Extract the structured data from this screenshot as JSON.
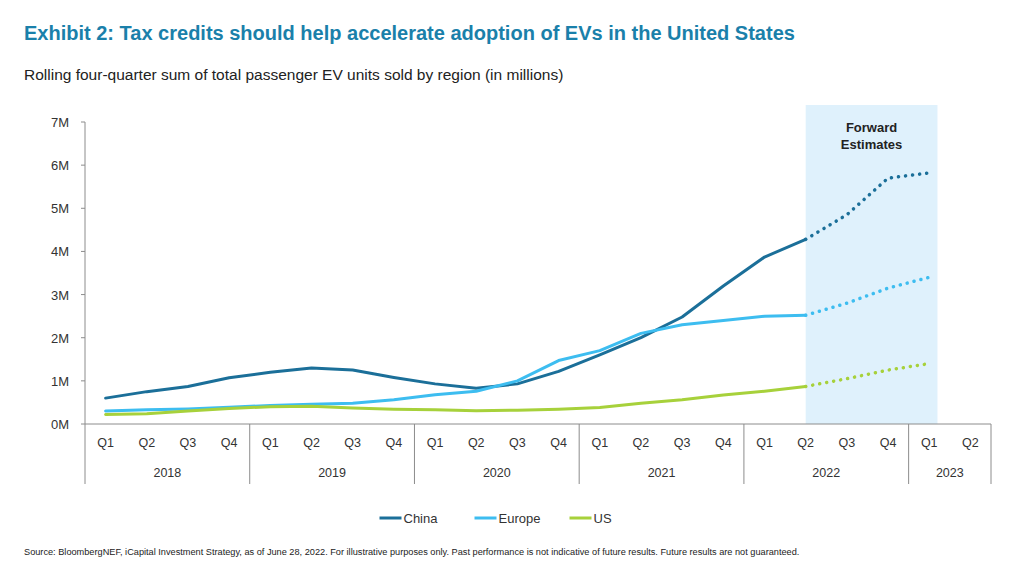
{
  "chart_data": {
    "type": "line",
    "title": "Exhibit 2: Tax credits should help accelerate adoption of EVs in the United States",
    "subtitle": "Rolling four-quarter sum of total passenger EV units sold by region (in millions)",
    "source": "Source: BloombergNEF, iCapital Investment Strategy, as of June 28, 2022. For illustrative purposes only. Past performance is not indicative of future results. Future results are not guaranteed.",
    "annotation": "Forward Estimates",
    "categories": [
      "Q1",
      "Q2",
      "Q3",
      "Q4",
      "Q1",
      "Q2",
      "Q3",
      "Q4",
      "Q1",
      "Q2",
      "Q3",
      "Q4",
      "Q1",
      "Q2",
      "Q3",
      "Q4",
      "Q1",
      "Q2",
      "Q3",
      "Q4",
      "Q1",
      "Q2"
    ],
    "groups": [
      {
        "label": "2018",
        "count": 4
      },
      {
        "label": "2019",
        "count": 4
      },
      {
        "label": "2020",
        "count": 4
      },
      {
        "label": "2021",
        "count": 4
      },
      {
        "label": "2022",
        "count": 4
      },
      {
        "label": "2023",
        "count": 2
      }
    ],
    "series": [
      {
        "name": "China",
        "color": "#1b6f99",
        "values": [
          0.6,
          0.75,
          0.87,
          1.07,
          1.2,
          1.3,
          1.25,
          1.08,
          0.93,
          0.83,
          0.93,
          1.22,
          1.6,
          2.0,
          2.48,
          3.2,
          3.87,
          4.28,
          null,
          null,
          null,
          null
        ],
        "forecast": [
          null,
          null,
          null,
          null,
          null,
          null,
          null,
          null,
          null,
          null,
          null,
          null,
          null,
          null,
          null,
          null,
          null,
          4.28,
          4.85,
          5.7,
          5.82,
          null
        ]
      },
      {
        "name": "Europe",
        "color": "#3dbdf0",
        "values": [
          0.3,
          0.33,
          0.35,
          0.39,
          0.43,
          0.46,
          0.48,
          0.56,
          0.68,
          0.76,
          1.0,
          1.47,
          1.7,
          2.1,
          2.3,
          2.4,
          2.5,
          2.52,
          null,
          null,
          null,
          null
        ],
        "forecast": [
          null,
          null,
          null,
          null,
          null,
          null,
          null,
          null,
          null,
          null,
          null,
          null,
          null,
          null,
          null,
          null,
          null,
          2.52,
          2.8,
          3.15,
          3.4,
          null
        ]
      },
      {
        "name": "US",
        "color": "#a7d13b",
        "values": [
          0.22,
          0.24,
          0.3,
          0.36,
          0.4,
          0.41,
          0.37,
          0.34,
          0.33,
          0.31,
          0.32,
          0.34,
          0.38,
          0.48,
          0.56,
          0.67,
          0.76,
          0.87,
          null,
          null,
          null,
          null
        ],
        "forecast": [
          null,
          null,
          null,
          null,
          null,
          null,
          null,
          null,
          null,
          null,
          null,
          null,
          null,
          null,
          null,
          null,
          null,
          0.87,
          1.05,
          1.25,
          1.4,
          null
        ]
      }
    ],
    "ylim": [
      0,
      7
    ],
    "yticks": [
      {
        "value": 0,
        "label": "0M"
      },
      {
        "value": 1,
        "label": "1M"
      },
      {
        "value": 2,
        "label": "2M"
      },
      {
        "value": 3,
        "label": "3M"
      },
      {
        "value": 4,
        "label": "4M"
      },
      {
        "value": 5,
        "label": "5M"
      },
      {
        "value": 6,
        "label": "6M"
      },
      {
        "value": 7,
        "label": "7M"
      }
    ],
    "grid": false,
    "legend": "bottom"
  }
}
